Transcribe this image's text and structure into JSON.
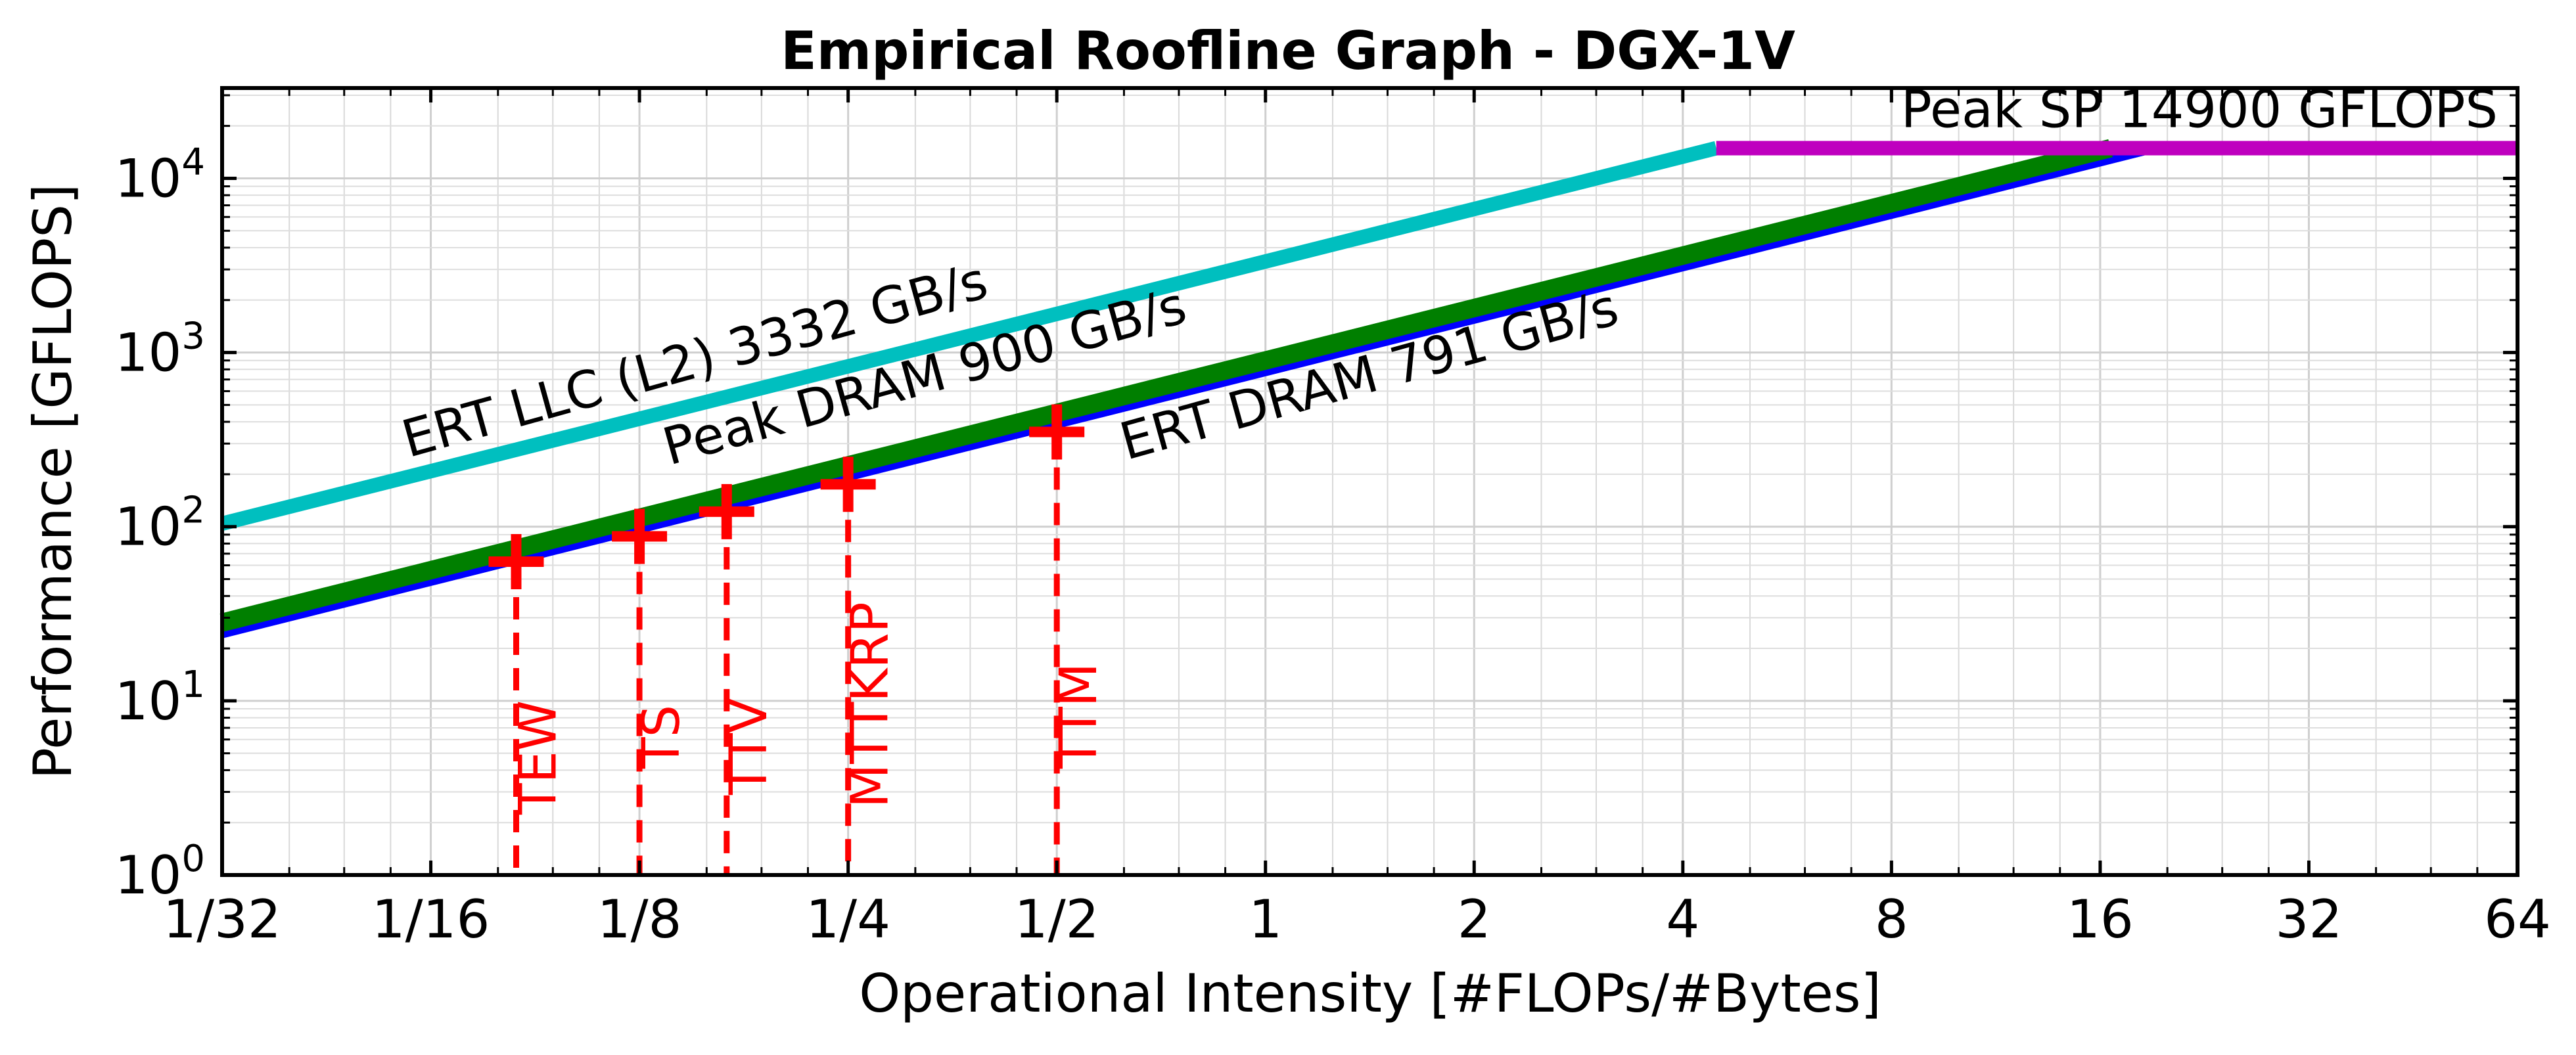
{
  "chart_data": {
    "type": "line",
    "title": "Empirical Roofline Graph - DGX-1V",
    "xlabel": "Operational Intensity [#FLOPs/#Bytes]",
    "ylabel": "Performance [GFLOPS]",
    "x_scale": "log2",
    "y_scale": "log10",
    "xlim": [
      0.03125,
      64
    ],
    "ylim": [
      1,
      33000
    ],
    "grid": true,
    "x_ticks": [
      {
        "value": 0.03125,
        "label": "1/32"
      },
      {
        "value": 0.0625,
        "label": "1/16"
      },
      {
        "value": 0.125,
        "label": "1/8"
      },
      {
        "value": 0.25,
        "label": "1/4"
      },
      {
        "value": 0.5,
        "label": "1/2"
      },
      {
        "value": 1,
        "label": "1"
      },
      {
        "value": 2,
        "label": "2"
      },
      {
        "value": 4,
        "label": "4"
      },
      {
        "value": 8,
        "label": "8"
      },
      {
        "value": 16,
        "label": "16"
      },
      {
        "value": 32,
        "label": "32"
      },
      {
        "value": 64,
        "label": "64"
      }
    ],
    "y_ticks": [
      {
        "value": 1,
        "base": "10",
        "exp": "0"
      },
      {
        "value": 10,
        "base": "10",
        "exp": "1"
      },
      {
        "value": 100,
        "base": "10",
        "exp": "2"
      },
      {
        "value": 1000,
        "base": "10",
        "exp": "3"
      },
      {
        "value": 10000,
        "base": "10",
        "exp": "4"
      }
    ],
    "rooflines": [
      {
        "label": "ERT LLC (L2) 3332 GB/s",
        "bandwidth": 3332,
        "x": [
          0.03125,
          4.47
        ],
        "color": "#00bfbf"
      },
      {
        "label": "Peak DRAM 900 GB/s",
        "bandwidth": 900,
        "x": [
          0.03125,
          16.56
        ],
        "color": "#007f00"
      },
      {
        "label": "ERT DRAM 791 GB/s",
        "bandwidth": 791,
        "x": [
          0.03125,
          18.84
        ],
        "color": "#0000ff"
      },
      {
        "label": "Peak SP 14900 GFLOPS",
        "flops": 14900,
        "x": [
          4.47,
          64
        ],
        "color": "#bf00bf"
      }
    ],
    "points": [
      {
        "label": "TEW",
        "x": 0.083,
        "y": 63
      },
      {
        "label": "TS",
        "x": 0.125,
        "y": 88
      },
      {
        "label": "TTV",
        "x": 0.167,
        "y": 122
      },
      {
        "label": "MTTKRP",
        "x": 0.25,
        "y": 175
      },
      {
        "label": "TTM",
        "x": 0.5,
        "y": 350
      }
    ],
    "point_color": "#ff0000"
  }
}
